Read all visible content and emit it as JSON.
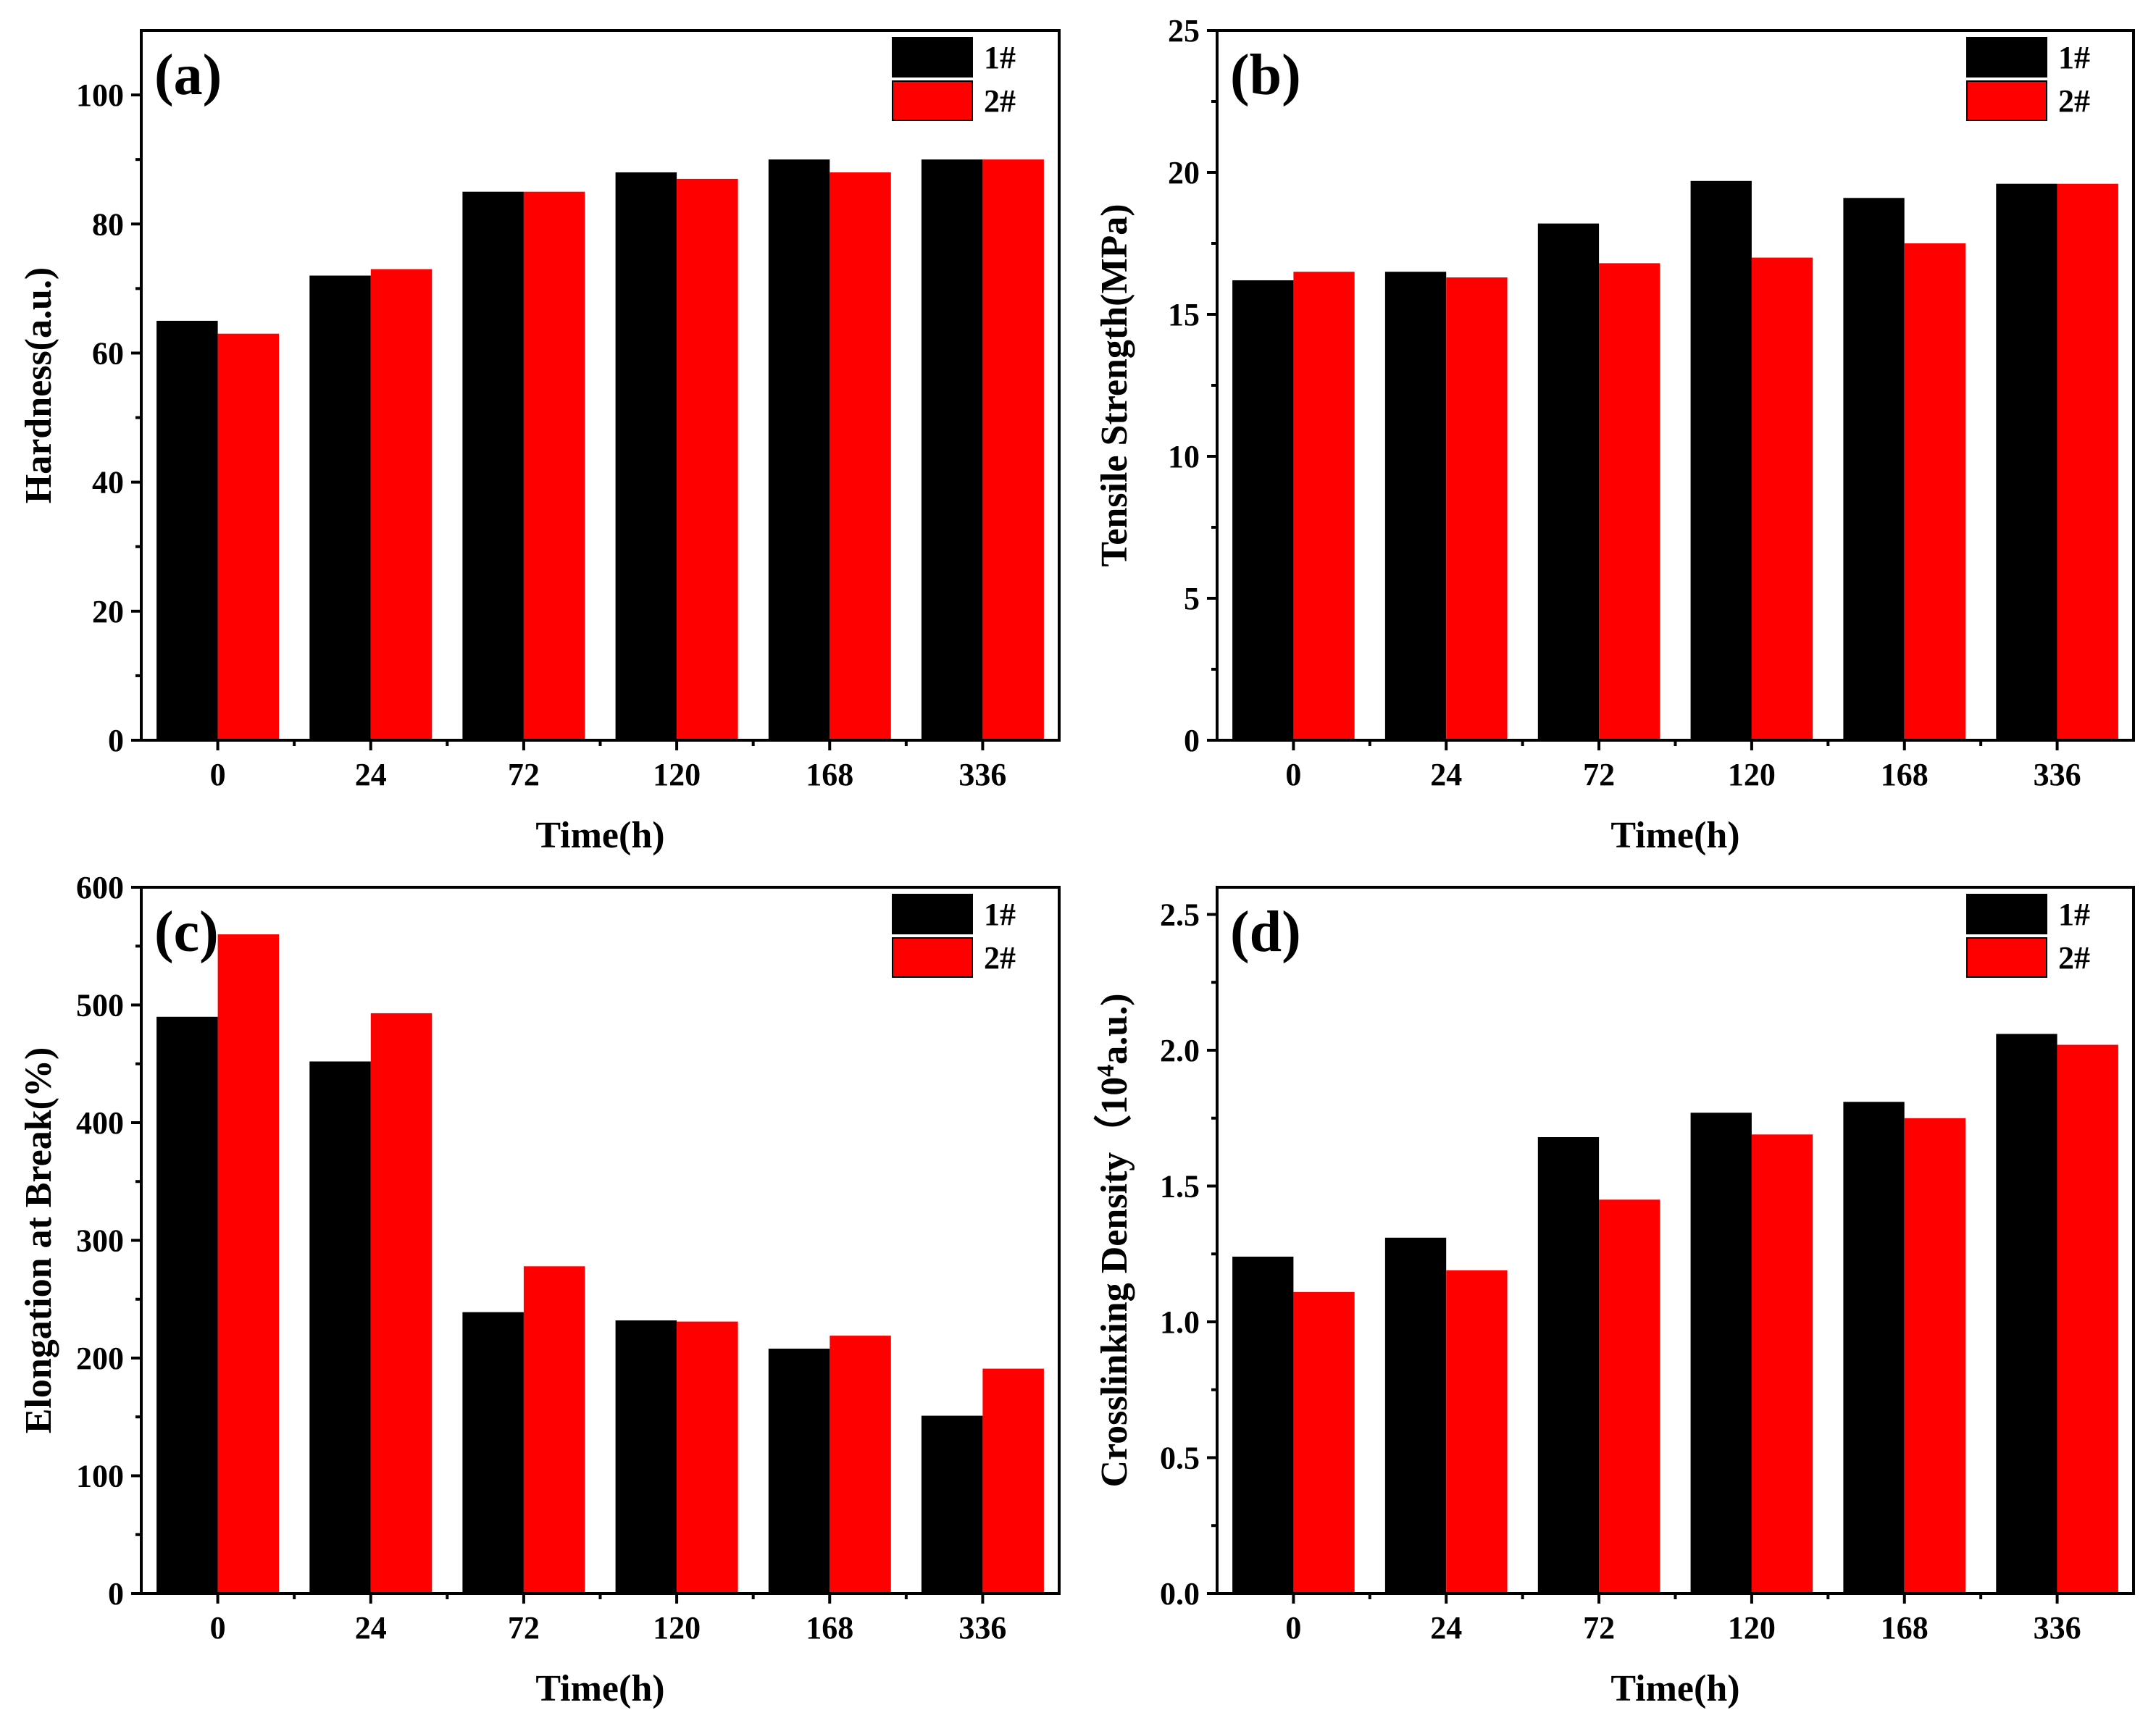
{
  "colors": {
    "series_1": "#000000",
    "series_2": "#ff0000",
    "axis": "#000000",
    "background": "#ffffff"
  },
  "chart_data": [
    {
      "type": "bar",
      "panel_label": "(a)",
      "xlabel": "Time(h)",
      "ylabel": "Hardness(a.u.)",
      "ylabel_sup": "",
      "ylabel_tail": "",
      "categories": [
        "0",
        "24",
        "72",
        "120",
        "168",
        "336"
      ],
      "series": [
        {
          "name": "1#",
          "values": [
            65,
            72,
            85,
            88,
            90,
            90
          ]
        },
        {
          "name": "2#",
          "values": [
            63,
            73,
            85,
            87,
            88,
            90
          ]
        }
      ],
      "ylim": [
        0,
        110
      ],
      "yticks": [
        0,
        20,
        40,
        60,
        80,
        100
      ],
      "ytick_labels": [
        "0",
        "20",
        "40",
        "60",
        "80",
        "100"
      ],
      "minor_ticks": true,
      "legend": "top-right",
      "grid": false
    },
    {
      "type": "bar",
      "panel_label": "(b)",
      "xlabel": "Time(h)",
      "ylabel": "Tensile Strength(MPa)",
      "ylabel_sup": "",
      "ylabel_tail": "",
      "categories": [
        "0",
        "24",
        "72",
        "120",
        "168",
        "336"
      ],
      "series": [
        {
          "name": "1#",
          "values": [
            16.2,
            16.5,
            18.2,
            19.7,
            19.1,
            19.6
          ]
        },
        {
          "name": "2#",
          "values": [
            16.5,
            16.3,
            16.8,
            17.0,
            17.5,
            19.6
          ]
        }
      ],
      "ylim": [
        0,
        25
      ],
      "yticks": [
        0,
        5,
        10,
        15,
        20,
        25
      ],
      "ytick_labels": [
        "0",
        "5",
        "10",
        "15",
        "20",
        "25"
      ],
      "minor_ticks": true,
      "legend": "top-right",
      "grid": false
    },
    {
      "type": "bar",
      "panel_label": "(c)",
      "xlabel": "Time(h)",
      "ylabel": "Elongation at Break(%)",
      "ylabel_sup": "",
      "ylabel_tail": "",
      "categories": [
        "0",
        "24",
        "72",
        "120",
        "168",
        "336"
      ],
      "series": [
        {
          "name": "1#",
          "values": [
            490,
            452,
            239,
            232,
            208,
            151
          ]
        },
        {
          "name": "2#",
          "values": [
            560,
            493,
            278,
            231,
            219,
            191
          ]
        }
      ],
      "ylim": [
        0,
        600
      ],
      "yticks": [
        0,
        100,
        200,
        300,
        400,
        500,
        600
      ],
      "ytick_labels": [
        "0",
        "100",
        "200",
        "300",
        "400",
        "500",
        "600"
      ],
      "minor_ticks": true,
      "legend": "top-right",
      "grid": false
    },
    {
      "type": "bar",
      "panel_label": "(d)",
      "xlabel": "Time(h)",
      "ylabel": "Crosslinking Density（10",
      "ylabel_sup": "4",
      "ylabel_tail": "a.u.)",
      "categories": [
        "0",
        "24",
        "72",
        "120",
        "168",
        "336"
      ],
      "series": [
        {
          "name": "1#",
          "values": [
            1.24,
            1.31,
            1.68,
            1.77,
            1.81,
            2.06
          ]
        },
        {
          "name": "2#",
          "values": [
            1.11,
            1.19,
            1.45,
            1.69,
            1.75,
            2.02
          ]
        }
      ],
      "ylim": [
        0,
        2.6
      ],
      "yticks": [
        0,
        0.5,
        1.0,
        1.5,
        2.0,
        2.5
      ],
      "ytick_labels": [
        "0.0",
        "0.5",
        "1.0",
        "1.5",
        "2.0",
        "2.5"
      ],
      "minor_ticks": true,
      "legend": "top-right",
      "grid": false
    }
  ]
}
